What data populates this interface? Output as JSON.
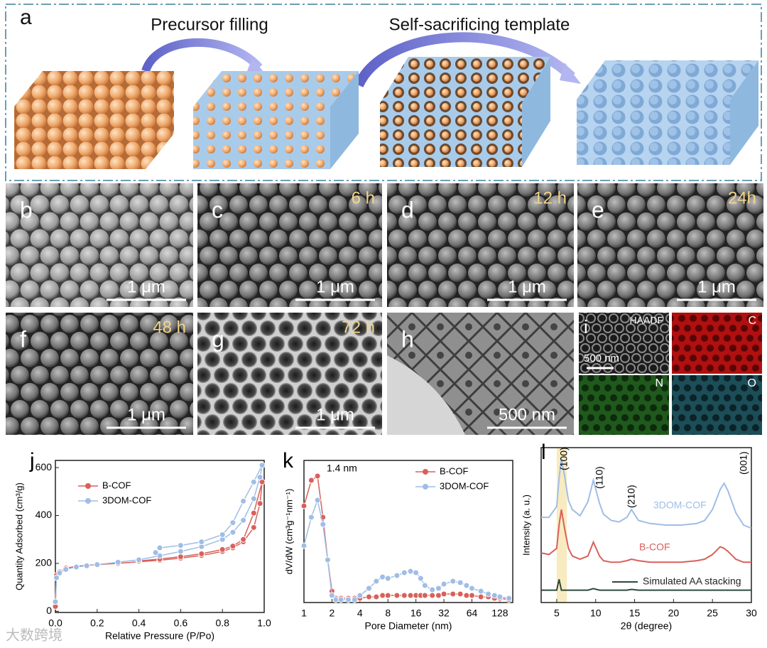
{
  "panel_a": {
    "label": "a",
    "steps": [
      "Precursor filling",
      "Self-sacrificing template"
    ]
  },
  "sem_panels": [
    {
      "label": "b",
      "scale_bar": "1 μm"
    },
    {
      "label": "c",
      "time": "6 h",
      "scale_bar": "1 μm"
    },
    {
      "label": "d",
      "time": "12 h",
      "scale_bar": "1 μm"
    },
    {
      "label": "e",
      "time": "24h",
      "scale_bar": "1 μm"
    },
    {
      "label": "f",
      "time": "48 h",
      "scale_bar": "1 μm"
    },
    {
      "label": "g",
      "time": "72 h",
      "scale_bar": "1 μm"
    },
    {
      "label": "h",
      "scale_bar": "500 nm"
    }
  ],
  "panel_i": {
    "label": "i",
    "scale_bar": "500 nm",
    "maps": [
      "HAADF",
      "C",
      "N",
      "O"
    ]
  },
  "watermark": "大数跨境",
  "chart_data": [
    {
      "type": "line",
      "panel_label": "j",
      "x_label": "Relative Pressure (P/Po)",
      "y_label": "Quantity Adsorbed (cm³/g)",
      "xlim": [
        0,
        1
      ],
      "xticks": [
        {
          "value": 0,
          "label": "0.0"
        },
        0.2,
        0.4,
        0.6,
        0.8,
        {
          "value": 1,
          "label": "1.0"
        }
      ],
      "ylim": [
        -5,
        630
      ],
      "yticks": [
        0,
        200,
        400,
        600
      ],
      "markers": true,
      "series": [
        {
          "name": "B-COF",
          "color": "#d9605a",
          "x": [
            0,
            0.005,
            0.02,
            0.05,
            0.1,
            0.15,
            0.2,
            0.3,
            0.4,
            0.5,
            0.6,
            0.7,
            0.8,
            0.85,
            0.9,
            0.95,
            0.98,
            0.99,
            0.95,
            0.9,
            0.85,
            0.8,
            0.7,
            0.6,
            0.5,
            0.4
          ],
          "values": [
            20,
            150,
            165,
            180,
            188,
            192,
            195,
            200,
            207,
            213,
            222,
            233,
            250,
            265,
            290,
            350,
            450,
            540,
            410,
            300,
            272,
            258,
            240,
            228,
            218,
            210
          ]
        },
        {
          "name": "3DOM-COF",
          "color": "#9fbde6",
          "x": [
            0,
            0.005,
            0.02,
            0.05,
            0.1,
            0.15,
            0.2,
            0.3,
            0.4,
            0.5,
            0.6,
            0.7,
            0.8,
            0.85,
            0.9,
            0.95,
            0.98,
            0.99,
            0.95,
            0.9,
            0.85,
            0.8,
            0.7,
            0.6,
            0.5,
            0.48
          ],
          "values": [
            40,
            140,
            160,
            175,
            185,
            190,
            195,
            205,
            215,
            232,
            250,
            270,
            300,
            330,
            380,
            470,
            560,
            610,
            540,
            460,
            370,
            320,
            290,
            275,
            265,
            245
          ]
        }
      ]
    },
    {
      "type": "line",
      "panel_label": "k",
      "x_label": "Pore Diameter (nm)",
      "y_label": "dV/dW (cm³g⁻¹nm⁻¹)",
      "xlim": [
        1,
        176
      ],
      "xticks": [
        1,
        2,
        4,
        8,
        16,
        32,
        64,
        128
      ],
      "x_log_base": 2,
      "ylim": [
        0,
        1
      ],
      "markers": true,
      "annotations": [
        "1.4 nm"
      ],
      "series": [
        {
          "name": "B-COF",
          "color": "#d9605a",
          "x": [
            1,
            1.2,
            1.4,
            1.6,
            1.8,
            2,
            2.2,
            2.5,
            3,
            3.5,
            4,
            5,
            6,
            7,
            8,
            10,
            12,
            14,
            16,
            18,
            20,
            24,
            28,
            32,
            40,
            48,
            56,
            64,
            80,
            96,
            112,
            128,
            160
          ],
          "values": [
            0.68,
            0.86,
            0.89,
            0.6,
            0.3,
            0.08,
            0.03,
            0.03,
            0.03,
            0.03,
            0.03,
            0.04,
            0.04,
            0.05,
            0.05,
            0.05,
            0.05,
            0.05,
            0.05,
            0.05,
            0.05,
            0.05,
            0.05,
            0.06,
            0.06,
            0.06,
            0.05,
            0.05,
            0.04,
            0.04,
            0.03,
            0.03,
            0.02
          ]
        },
        {
          "name": "3DOM-COF",
          "color": "#9fbde6",
          "x": [
            1,
            1.2,
            1.4,
            1.6,
            1.8,
            2,
            2.2,
            2.5,
            3,
            3.5,
            4,
            5,
            6,
            7,
            8,
            10,
            12,
            14,
            16,
            18,
            20,
            24,
            28,
            32,
            40,
            48,
            56,
            64,
            80,
            96,
            112,
            128,
            160
          ],
          "values": [
            0.4,
            0.6,
            0.72,
            0.55,
            0.3,
            0.05,
            0.02,
            0.02,
            0.02,
            0.02,
            0.05,
            0.1,
            0.15,
            0.18,
            0.17,
            0.19,
            0.21,
            0.22,
            0.21,
            0.17,
            0.12,
            0.09,
            0.1,
            0.13,
            0.15,
            0.14,
            0.12,
            0.1,
            0.08,
            0.06,
            0.05,
            0.04,
            0.03
          ]
        }
      ]
    },
    {
      "type": "line",
      "panel_label": "l",
      "x_label": "2θ (degree)",
      "y_label": "Intensity (a. u.)",
      "xlim": [
        3,
        30
      ],
      "xticks": [
        5,
        10,
        15,
        20,
        25,
        30
      ],
      "ylim": [
        0,
        1
      ],
      "markers": false,
      "annotations": [
        "(100)",
        "(110)",
        "(210)",
        "(001)"
      ],
      "series": [
        {
          "name": "3DOM-COF",
          "color": "#9fbde6",
          "x": [
            3,
            4,
            5,
            5.3,
            5.6,
            6,
            6.5,
            7,
            8,
            9,
            9.7,
            10.5,
            11,
            12,
            13,
            14,
            14.6,
            15.5,
            17,
            19,
            21,
            23,
            24,
            25,
            26,
            26.5,
            27,
            28,
            29,
            30
          ],
          "values": [
            0.55,
            0.55,
            0.62,
            0.8,
            0.93,
            0.82,
            0.66,
            0.6,
            0.56,
            0.65,
            0.79,
            0.64,
            0.57,
            0.53,
            0.52,
            0.55,
            0.6,
            0.53,
            0.51,
            0.5,
            0.5,
            0.51,
            0.53,
            0.6,
            0.73,
            0.77,
            0.72,
            0.58,
            0.5,
            0.48
          ]
        },
        {
          "name": "B-COF",
          "color": "#d9605a",
          "x": [
            3,
            4,
            5,
            5.3,
            5.6,
            6,
            6.5,
            7,
            8,
            9,
            9.7,
            10.5,
            11,
            12,
            13,
            14,
            14.6,
            15.5,
            17,
            19,
            21,
            23,
            24,
            25,
            26,
            26.5,
            27,
            28,
            29,
            30
          ],
          "values": [
            0.32,
            0.31,
            0.35,
            0.5,
            0.6,
            0.48,
            0.35,
            0.3,
            0.28,
            0.3,
            0.39,
            0.3,
            0.27,
            0.26,
            0.26,
            0.27,
            0.28,
            0.27,
            0.26,
            0.26,
            0.26,
            0.27,
            0.28,
            0.31,
            0.36,
            0.35,
            0.33,
            0.28,
            0.26,
            0.26
          ]
        },
        {
          "name": "Simulated AA stacking",
          "color": "#2e4a3c",
          "x": [
            3,
            4,
            5,
            5.3,
            5.6,
            6,
            6.5,
            7,
            8,
            9,
            9.7,
            10.5,
            11,
            12,
            13,
            14,
            14.6,
            15.5,
            17,
            19,
            21,
            23,
            24,
            25,
            26,
            26.5,
            27,
            28,
            29,
            30
          ],
          "values": [
            0.08,
            0.08,
            0.08,
            0.15,
            0.08,
            0.08,
            0.08,
            0.08,
            0.08,
            0.08,
            0.09,
            0.08,
            0.08,
            0.08,
            0.08,
            0.08,
            0.085,
            0.08,
            0.08,
            0.08,
            0.08,
            0.08,
            0.08,
            0.08,
            0.08,
            0.08,
            0.08,
            0.08,
            0.08,
            0.08
          ]
        }
      ]
    }
  ]
}
